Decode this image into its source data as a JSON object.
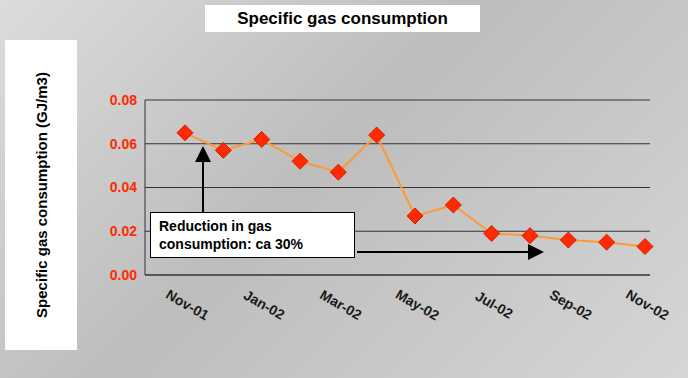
{
  "chart_data": {
    "type": "line",
    "title": "Specific gas consumption",
    "y_label": "Specific gas consumption (GJ/m3)",
    "annotation": "Reduction in gas consumption: ca 30%",
    "categories": [
      "Nov-01",
      null,
      "Jan-02",
      null,
      "Mar-02",
      null,
      "May-02",
      null,
      "Jul-02",
      null,
      "Sep-02",
      null,
      "Nov-02"
    ],
    "values": [
      0.065,
      0.057,
      0.062,
      0.052,
      0.047,
      0.064,
      0.027,
      0.032,
      0.019,
      0.018,
      0.016,
      0.015,
      0.013
    ],
    "color": "#ff9933",
    "marker": "diamond",
    "ylim": [
      0,
      0.08
    ],
    "yticks": [
      {
        "value": 0,
        "label": "0.00"
      },
      0.02,
      0.04,
      0.06,
      0.08
    ],
    "grid": true
  }
}
